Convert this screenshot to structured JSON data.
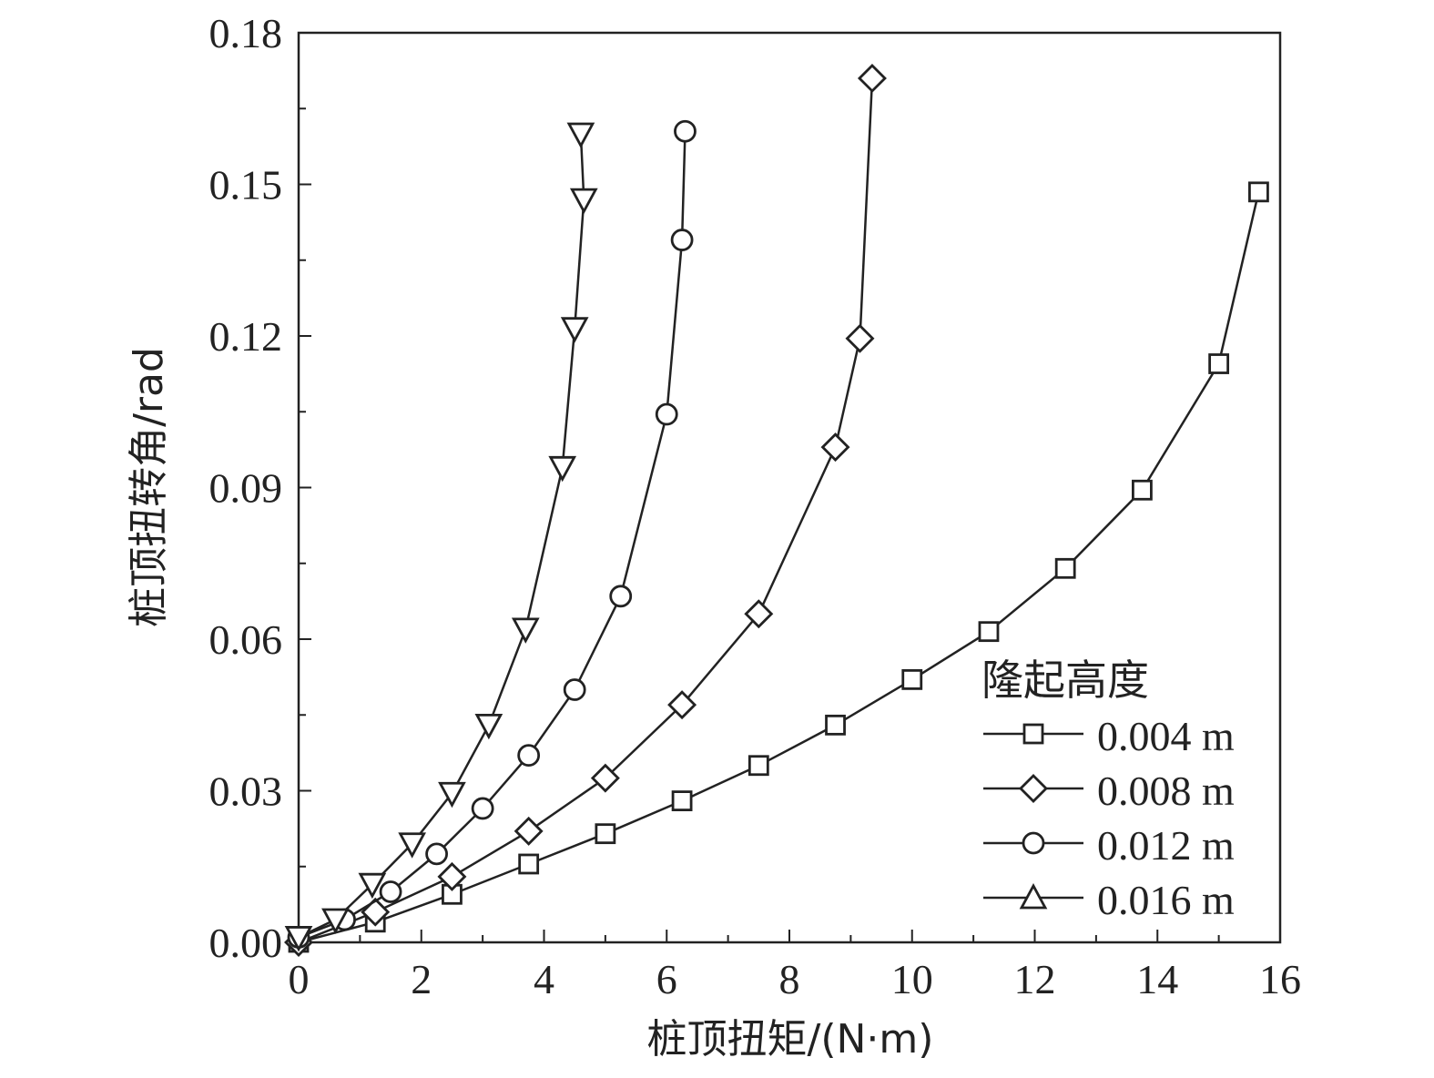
{
  "chart_data": {
    "type": "line",
    "xlabel": "桩顶扭矩/(N·m)",
    "ylabel": "桩顶扭转角/rad",
    "xlim": [
      0,
      16
    ],
    "ylim": [
      0,
      0.18
    ],
    "x_ticks": [
      "0",
      "2",
      "4",
      "6",
      "8",
      "10",
      "12",
      "14",
      "16"
    ],
    "y_ticks": [
      "0.00",
      "0.03",
      "0.06",
      "0.09",
      "0.12",
      "0.15",
      "0.18"
    ],
    "grid": false,
    "legend": {
      "title": "隆起高度",
      "position": "bottom-right"
    },
    "series": [
      {
        "name": "0.004 m",
        "marker": "square",
        "points": [
          [
            0,
            0.0
          ],
          [
            1.25,
            0.004
          ],
          [
            2.5,
            0.0095
          ],
          [
            3.75,
            0.0155
          ],
          [
            5.0,
            0.0215
          ],
          [
            6.25,
            0.028
          ],
          [
            7.5,
            0.035
          ],
          [
            8.75,
            0.043
          ],
          [
            10.0,
            0.052
          ],
          [
            11.25,
            0.0615
          ],
          [
            12.5,
            0.074
          ],
          [
            13.75,
            0.0895
          ],
          [
            15.0,
            0.1145
          ],
          [
            15.65,
            0.1485
          ]
        ]
      },
      {
        "name": "0.008 m",
        "marker": "diamond",
        "points": [
          [
            0,
            0.0
          ],
          [
            1.25,
            0.006
          ],
          [
            2.5,
            0.013
          ],
          [
            3.75,
            0.022
          ],
          [
            5.0,
            0.0325
          ],
          [
            6.25,
            0.047
          ],
          [
            7.5,
            0.065
          ],
          [
            8.75,
            0.098
          ],
          [
            9.15,
            0.1195
          ],
          [
            9.35,
            0.171
          ]
        ]
      },
      {
        "name": "0.012 m",
        "marker": "circle",
        "points": [
          [
            0,
            0.001
          ],
          [
            0.75,
            0.0045
          ],
          [
            1.5,
            0.01
          ],
          [
            2.25,
            0.0175
          ],
          [
            3.0,
            0.0265
          ],
          [
            3.75,
            0.037
          ],
          [
            4.5,
            0.05
          ],
          [
            5.25,
            0.0685
          ],
          [
            6.0,
            0.1045
          ],
          [
            6.25,
            0.139
          ],
          [
            6.3,
            0.1605
          ]
        ]
      },
      {
        "name": "0.016 m",
        "marker": "triangle-down",
        "points": [
          [
            0,
            0.001
          ],
          [
            0.6,
            0.0045
          ],
          [
            1.2,
            0.0115
          ],
          [
            1.85,
            0.0195
          ],
          [
            2.5,
            0.0295
          ],
          [
            3.1,
            0.043
          ],
          [
            3.7,
            0.062
          ],
          [
            4.3,
            0.094
          ],
          [
            4.5,
            0.1215
          ],
          [
            4.65,
            0.147
          ],
          [
            4.6,
            0.16
          ]
        ]
      }
    ]
  }
}
